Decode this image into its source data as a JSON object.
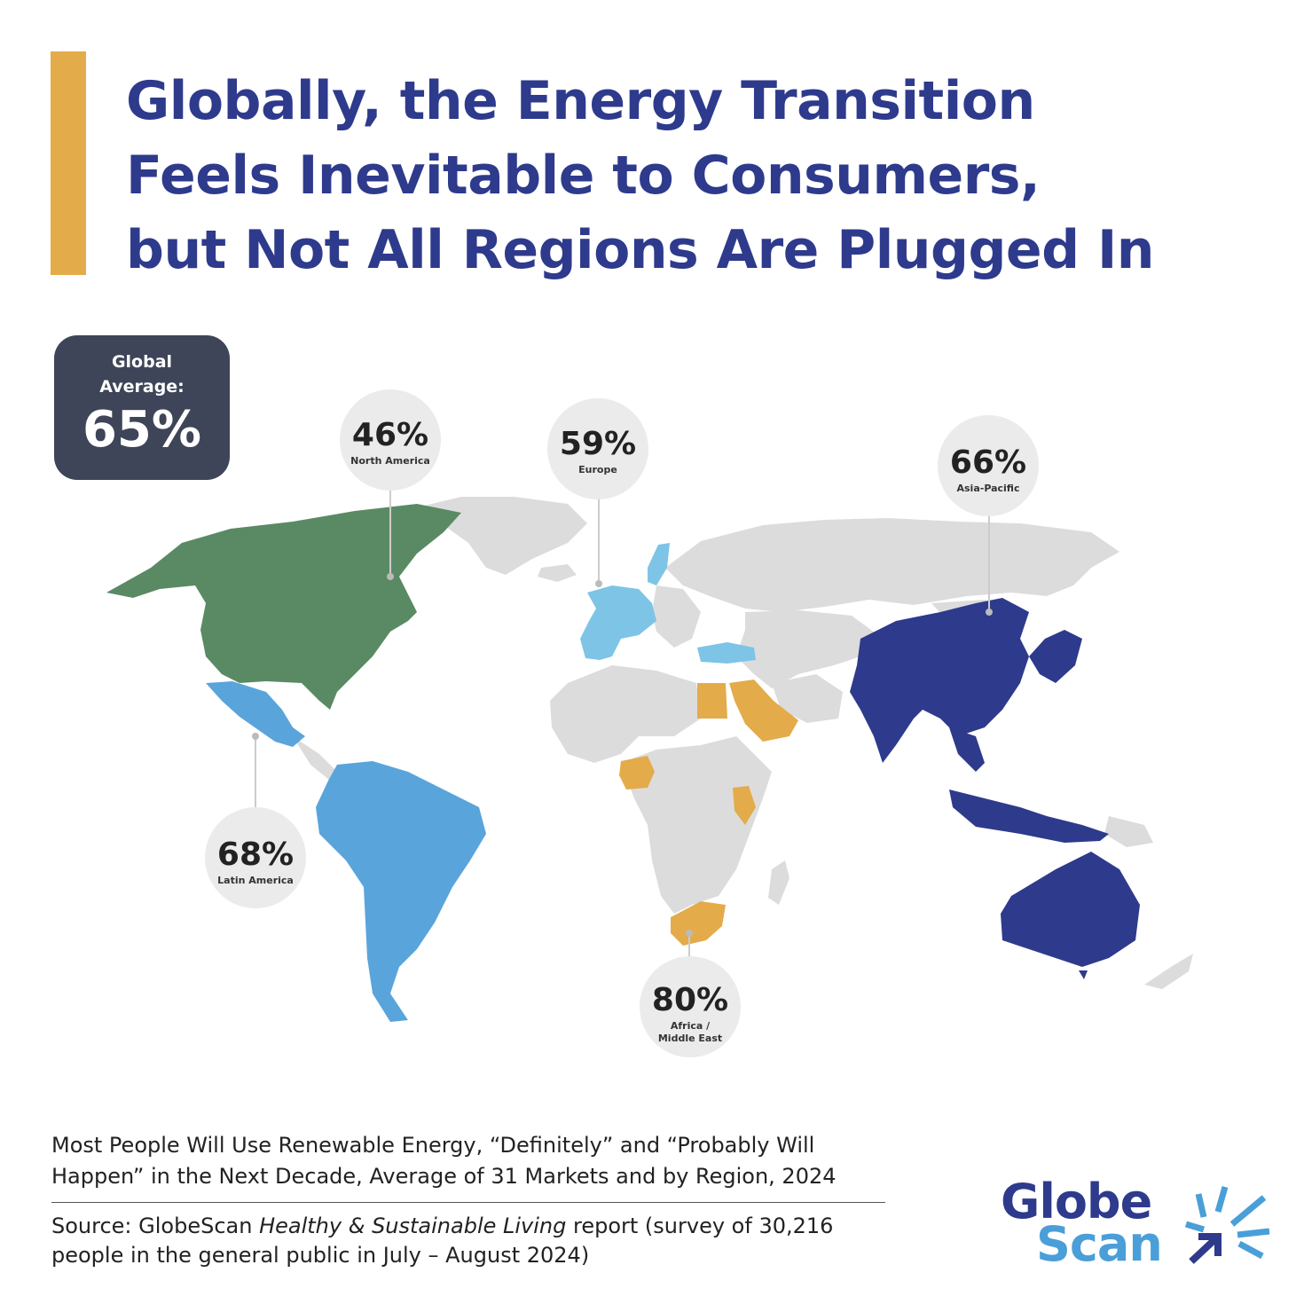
{
  "title": {
    "line1": "Globally, the Energy Transition",
    "line2": "Feels Inevitable to Consumers,",
    "line3": "but Not All Regions Are Plugged In"
  },
  "global_average": {
    "label_line1": "Global",
    "label_line2": "Average:",
    "value": "65%"
  },
  "regions": [
    {
      "name": "North America",
      "value": "46%",
      "percent": 46,
      "color": "#5a8a64"
    },
    {
      "name": "Europe",
      "value": "59%",
      "percent": 59,
      "color": "#7ec4e6"
    },
    {
      "name": "Asia-Pacific",
      "value": "66%",
      "percent": 66,
      "color": "#2e3a8c"
    },
    {
      "name": "Latin America",
      "value": "68%",
      "percent": 68,
      "color": "#5aa4dc"
    },
    {
      "name_line1": "Africa /",
      "name_line2": "Middle East",
      "value": "80%",
      "percent": 80,
      "color": "#e4ab4a"
    }
  ],
  "caption": {
    "line1": "Most People Will Use Renewable Energy, “Definitely” and “Probably Will",
    "line2": "Happen” in the Next Decade, Average of 31 Markets and by Region, 2024"
  },
  "source": {
    "prefix": "Source: GlobeScan ",
    "report": "Healthy & Sustainable Living",
    "suffix": " report (survey of 30,216",
    "line2": "people in the general public in July – August 2024)"
  },
  "logo": {
    "top": "Globe",
    "bottom": "Scan"
  },
  "colors": {
    "accent": "#e4ab4a",
    "title": "#2e3a8c",
    "land_other": "#dcdcdc",
    "global_box": "#3f4558"
  }
}
